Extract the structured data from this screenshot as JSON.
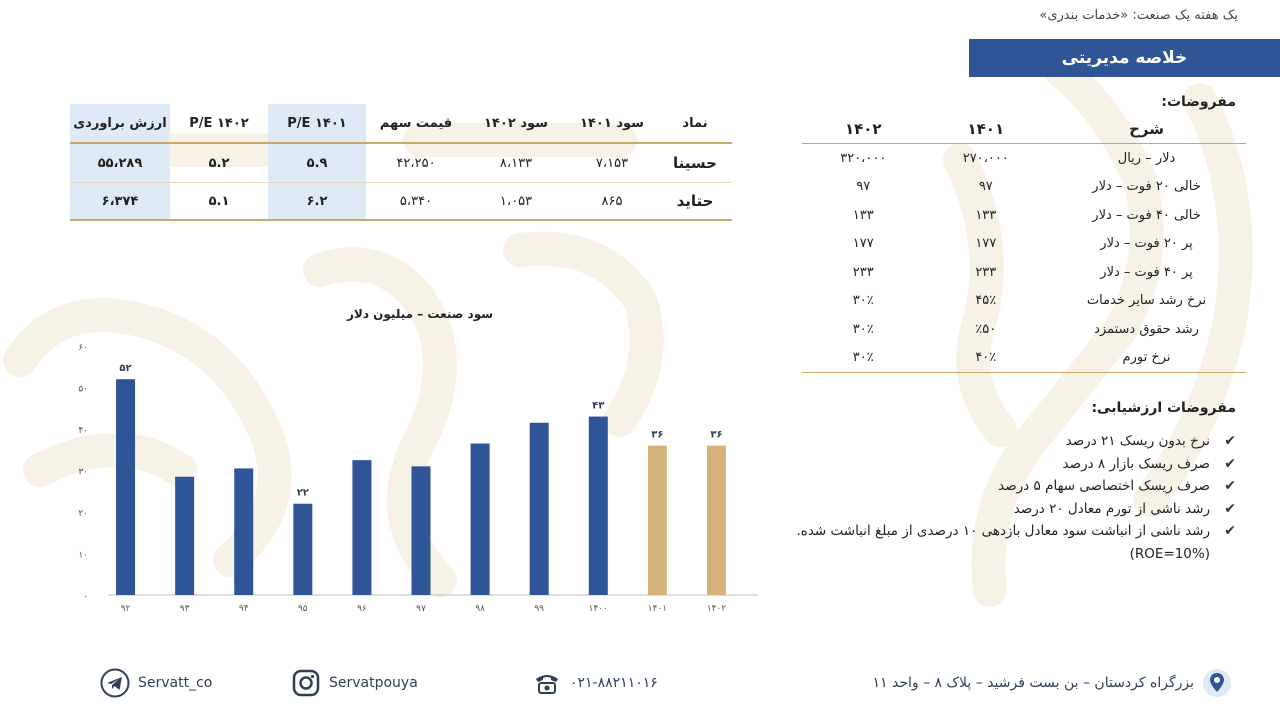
{
  "header": {
    "caption": "یک هفته یک صنعت: «خدمات بندری»",
    "banner": "خلاصه مدیریتی"
  },
  "valuation_table": {
    "headers": [
      "نماد",
      "سود ۱۴۰۱",
      "سود ۱۴۰۲",
      "قیمت سهم",
      "P/E ۱۴۰۱",
      "P/E ۱۴۰۲",
      "ارزش براوردی"
    ],
    "rows": [
      [
        "حسینا",
        "۷،۱۵۳",
        "۸،۱۳۳",
        "۴۲،۲۵۰",
        "۵.۹",
        "۵.۲",
        "۵۵،۲۸۹"
      ],
      [
        "حتاید",
        "۸۶۵",
        "۱،۰۵۳",
        "۵،۳۴۰",
        "۶.۲",
        "۵.۱",
        "۶،۳۷۴"
      ]
    ]
  },
  "assumptions": {
    "title": "مفروضات:",
    "headers": [
      "شرح",
      "۱۴۰۱",
      "۱۴۰۲"
    ],
    "rows": [
      [
        "دلار – ریال",
        "۲۷۰،۰۰۰",
        "۳۲۰،۰۰۰"
      ],
      [
        "خالی ۲۰ فوت – دلار",
        "۹۷",
        "۹۷"
      ],
      [
        "خالی ۴۰ فوت – دلار",
        "۱۳۳",
        "۱۳۳"
      ],
      [
        "پر ۲۰ فوت – دلار",
        "۱۷۷",
        "۱۷۷"
      ],
      [
        "پر ۴۰ فوت – دلار",
        "۲۳۳",
        "۲۳۳"
      ],
      [
        "نرخ رشد سایر خدمات",
        "۴۵٪",
        "۳۰٪"
      ],
      [
        "رشد حقوق دستمزد",
        "٪۵۰",
        "۳۰٪"
      ],
      [
        "نرخ تورم",
        "۴۰٪",
        "۳۰٪"
      ]
    ]
  },
  "valuation_assumptions": {
    "title": "مفروضات ارزشیابی:",
    "items": [
      "نرخ بدون ریسک ۲۱ درصد",
      "صرف ریسک بازار ۸ درصد",
      "صرف ریسک اختصاصی سهام ۵ درصد",
      "رشد ناشی از تورم معادل ۲۰ درصد",
      "رشد ناشی از انباشت سود معادل بازدهی ۱۰ درصدی از مبلغ انباشت شده. (ROE=10%)"
    ]
  },
  "chart_data": {
    "type": "bar",
    "title": "سود صنعت – میلیون دلار",
    "categories": [
      "۹۲",
      "۹۳",
      "۹۴",
      "۹۵",
      "۹۶",
      "۹۷",
      "۹۸",
      "۹۹",
      "۱۴۰۰",
      "۱۴۰۱",
      "۱۴۰۲"
    ],
    "values": [
      52,
      28.5,
      30.5,
      22,
      32.5,
      31,
      36.5,
      41.5,
      43,
      36,
      36
    ],
    "data_labels": [
      "۵۲",
      "",
      "",
      "۲۲",
      "",
      "",
      "",
      "",
      "۴۳",
      "۳۶",
      "۳۶"
    ],
    "forecast_flags": [
      false,
      false,
      false,
      false,
      false,
      false,
      false,
      false,
      false,
      true,
      true
    ],
    "ylim": [
      0,
      60
    ],
    "yticks": [
      "۰",
      "۱۰",
      "۲۰",
      "۳۰",
      "۴۰",
      "۵۰",
      "۶۰"
    ],
    "grid": false,
    "colors": {
      "actual": "#2f5597",
      "forecast": "#d4b27a"
    }
  },
  "footer": {
    "telegram": "Servatt_co",
    "instagram": "Servatpouya",
    "phone": "۰۲۱-۸۸۲۱۱۰۱۶",
    "address": "بزرگراه کردستان – بن بست فرشید – پلاک ۸ – واحد ۱۱"
  },
  "icons": {
    "telegram": "telegram-icon",
    "instagram": "instagram-icon",
    "phone": "phone-icon",
    "location": "location-pin-icon"
  }
}
